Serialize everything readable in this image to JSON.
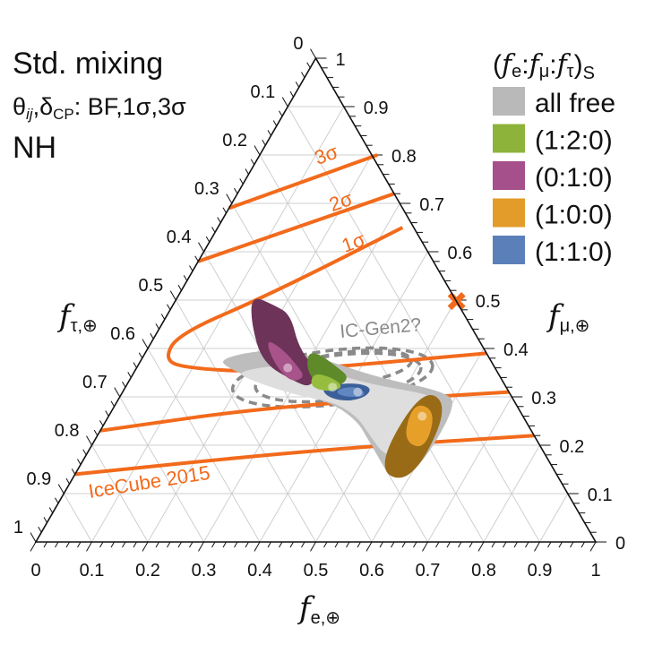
{
  "header": {
    "line1": "Std. mixing",
    "line2_theta": "θ",
    "line2_ij": "ij",
    "line2_delta": ",δ",
    "line2_cp": "CP",
    "line2_rest": ": BF,1σ,3σ",
    "line3": "NH"
  },
  "legend": {
    "title_open": "(",
    "title_fe": "f",
    "title_e": "e",
    "title_fmu": "f",
    "title_mu": "μ",
    "title_ftau": "f",
    "title_tau": "τ",
    "title_close": ")",
    "title_sub": "S",
    "items": [
      {
        "label": "all free",
        "color": "#b9b9b9"
      },
      {
        "label": "(1:2:0)",
        "color": "#8db33a"
      },
      {
        "label": "(0:1:0)",
        "color": "#a5508a"
      },
      {
        "label": "(1:0:0)",
        "color": "#e39b2a"
      },
      {
        "label": "(1:1:0)",
        "color": "#5b7fb9"
      }
    ]
  },
  "chart_data": {
    "type": "ternary",
    "axes": {
      "bottom": {
        "label": "f",
        "sub": "e,⊕",
        "ticks": [
          "0",
          "0.1",
          "0.2",
          "0.3",
          "0.4",
          "0.5",
          "0.6",
          "0.7",
          "0.8",
          "0.9",
          "1"
        ]
      },
      "right": {
        "label": "f",
        "sub": "μ,⊕",
        "ticks": [
          "0",
          "0.1",
          "0.2",
          "0.3",
          "0.4",
          "0.5",
          "0.6",
          "0.7",
          "0.8",
          "0.9",
          "1"
        ]
      },
      "left": {
        "label": "f",
        "sub": "τ,⊕",
        "ticks": [
          "0",
          "0.1",
          "0.2",
          "0.3",
          "0.4",
          "0.5",
          "0.6",
          "0.7",
          "0.8",
          "0.9",
          "1"
        ]
      }
    },
    "grid": true,
    "coordinate_note_keys": [
      "f_e",
      "f_mu"
    ],
    "regions": [
      {
        "name": "all free",
        "color_outer": "#bdbdbd",
        "color_inner": "#dedede",
        "points": [
          [
            0.14,
            0.38
          ],
          [
            0.22,
            0.4
          ],
          [
            0.32,
            0.38
          ],
          [
            0.44,
            0.34
          ],
          [
            0.58,
            0.31
          ],
          [
            0.61,
            0.28
          ],
          [
            0.61,
            0.16
          ],
          [
            0.58,
            0.12
          ],
          [
            0.5,
            0.2
          ],
          [
            0.45,
            0.25
          ],
          [
            0.38,
            0.29
          ],
          [
            0.29,
            0.31
          ],
          [
            0.16,
            0.36
          ]
        ]
      },
      {
        "name": "(1:0:0)",
        "color_outer": "#9a6b16",
        "color_inner": "#e6a02a",
        "outer": [
          [
            0.53,
            0.32
          ],
          [
            0.6,
            0.28
          ],
          [
            0.61,
            0.12
          ],
          [
            0.53,
            0.15
          ]
        ],
        "inner": [
          [
            0.53,
            0.29
          ],
          [
            0.58,
            0.27
          ],
          [
            0.6,
            0.19
          ],
          [
            0.55,
            0.21
          ]
        ],
        "best_fit": [
          0.56,
          0.26
        ]
      },
      {
        "name": "(0:1:0)",
        "color_outer": "#6e3359",
        "color_inner": "#a8538a",
        "outer": [
          [
            0.13,
            0.51
          ],
          [
            0.18,
            0.49
          ],
          [
            0.22,
            0.47
          ],
          [
            0.27,
            0.4
          ],
          [
            0.33,
            0.35
          ],
          [
            0.33,
            0.32
          ],
          [
            0.3,
            0.33
          ],
          [
            0.22,
            0.37
          ],
          [
            0.16,
            0.45
          ]
        ],
        "inner": [
          [
            0.2,
            0.42
          ],
          [
            0.24,
            0.4
          ],
          [
            0.29,
            0.36
          ],
          [
            0.31,
            0.34
          ],
          [
            0.29,
            0.33
          ],
          [
            0.24,
            0.37
          ]
        ],
        "best_fit": [
          0.27,
          0.36
        ]
      },
      {
        "name": "(1:1:0)",
        "color_outer": "#3a5f99",
        "color_inner": "#6187c2",
        "outer": [
          [
            0.35,
            0.32
          ],
          [
            0.4,
            0.33
          ],
          [
            0.44,
            0.32
          ],
          [
            0.44,
            0.3
          ],
          [
            0.41,
            0.29
          ],
          [
            0.37,
            0.3
          ]
        ],
        "inner": [
          [
            0.39,
            0.32
          ],
          [
            0.42,
            0.32
          ],
          [
            0.44,
            0.3
          ],
          [
            0.4,
            0.3
          ],
          [
            0.38,
            0.31
          ]
        ],
        "best_fit": [
          0.42,
          0.31
        ]
      },
      {
        "name": "(1:2:0)",
        "color_outer": "#5f8a2a",
        "color_inner": "#97bd3e",
        "outer": [
          [
            0.29,
            0.39
          ],
          [
            0.31,
            0.39
          ],
          [
            0.36,
            0.36
          ],
          [
            0.39,
            0.34
          ],
          [
            0.38,
            0.32
          ],
          [
            0.35,
            0.32
          ],
          [
            0.31,
            0.35
          ]
        ],
        "inner": [
          [
            0.32,
            0.35
          ],
          [
            0.36,
            0.34
          ],
          [
            0.39,
            0.32
          ],
          [
            0.37,
            0.31
          ],
          [
            0.33,
            0.32
          ]
        ],
        "best_fit": [
          0.37,
          0.32
        ]
      }
    ],
    "icecube_2015": {
      "label": "IceCube 2015",
      "color": "#f26a1b",
      "contours": [
        {
          "label": "3σ",
          "points": [
            [
              0,
              0.69
            ],
            [
              0.21,
              0.8
            ]
          ]
        },
        {
          "label": "2σ",
          "points": [
            [
              0,
              0.58
            ],
            [
              0.28,
              0.72
            ]
          ]
        },
        {
          "label": "1σ",
          "points": [
            [
              0.33,
              0.65
            ],
            [
              0.16,
              0.51
            ],
            [
              0.04,
              0.43
            ],
            [
              0.04,
              0.38
            ],
            [
              0.08,
              0.36
            ],
            [
              0.24,
              0.35
            ],
            [
              0.61,
              0.39
            ]
          ]
        },
        {
          "label": "",
          "points": [
            [
              0,
              0.23
            ],
            [
              0.28,
              0.28
            ],
            [
              0.69,
              0.31
            ]
          ]
        },
        {
          "label": "",
          "points": [
            [
              0,
              0.14
            ],
            [
              0.4,
              0.19
            ],
            [
              0.78,
              0.22
            ]
          ]
        }
      ],
      "best_fit_marker": [
        0.5,
        0.5
      ]
    },
    "ic_gen2": {
      "label": "IC-Gen2?",
      "color": "#8a8a8a",
      "ellipses": [
        {
          "center": [
            0.36,
            0.34
          ],
          "half_width_fe": 0.29,
          "half_height_fmu": 0.056
        },
        {
          "center": [
            0.37,
            0.34
          ],
          "half_width_fe": 0.24,
          "half_height_fmu": 0.046
        },
        {
          "center": [
            0.38,
            0.36
          ],
          "half_width_fe": 0.18,
          "half_height_fmu": 0.033
        }
      ]
    }
  }
}
